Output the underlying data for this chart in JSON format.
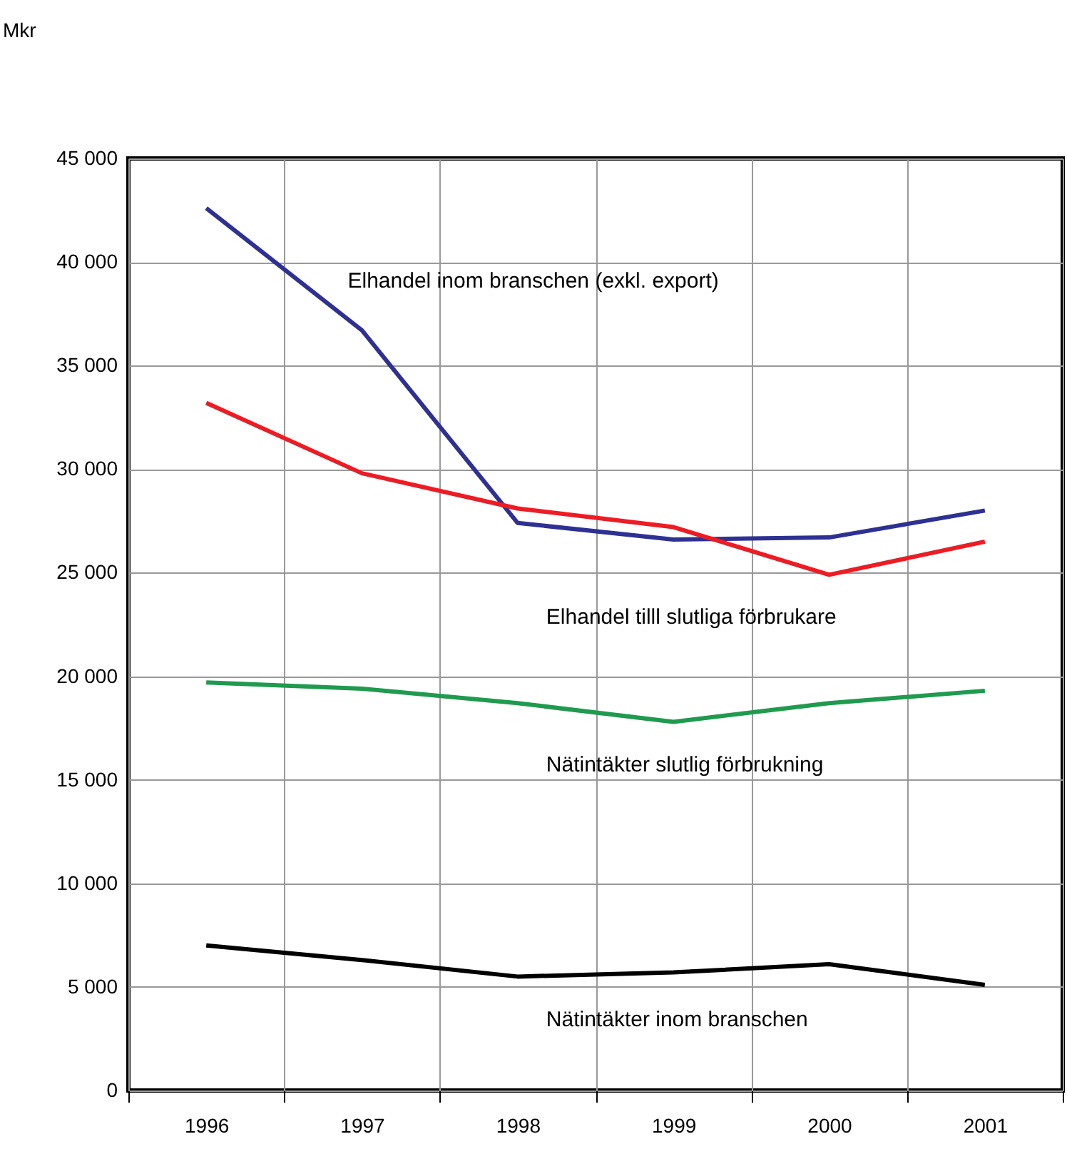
{
  "chart_data": {
    "type": "line",
    "annotations": [
      "Mkr"
    ],
    "categories": [
      "1996",
      "1997",
      "1998",
      "1999",
      "2000",
      "2001"
    ],
    "series": [
      {
        "name": "Elhandel inom branschen (exkl. export)",
        "color": "#2e3192",
        "values": [
          42600,
          36700,
          27400,
          26600,
          26700,
          28000
        ]
      },
      {
        "name": "Elhandel tilll slutliga förbrukare",
        "color": "#ed1c24",
        "values": [
          33200,
          29800,
          28100,
          27200,
          24900,
          26500
        ]
      },
      {
        "name": "Nätintäkter slutlig förbrukning",
        "color": "#1f9a4e",
        "values": [
          19700,
          19400,
          18700,
          17800,
          18700,
          19300
        ]
      },
      {
        "name": "Nätintäkter inom branschen",
        "color": "#000000",
        "values": [
          7000,
          6300,
          5500,
          5700,
          6100,
          5100
        ]
      }
    ],
    "ylim": [
      0,
      45000
    ],
    "yticks": [
      0,
      5000,
      10000,
      15000,
      20000,
      25000,
      30000,
      35000,
      40000,
      45000
    ],
    "grid": true,
    "legend": false,
    "marker": "none",
    "line_style": "solid"
  }
}
